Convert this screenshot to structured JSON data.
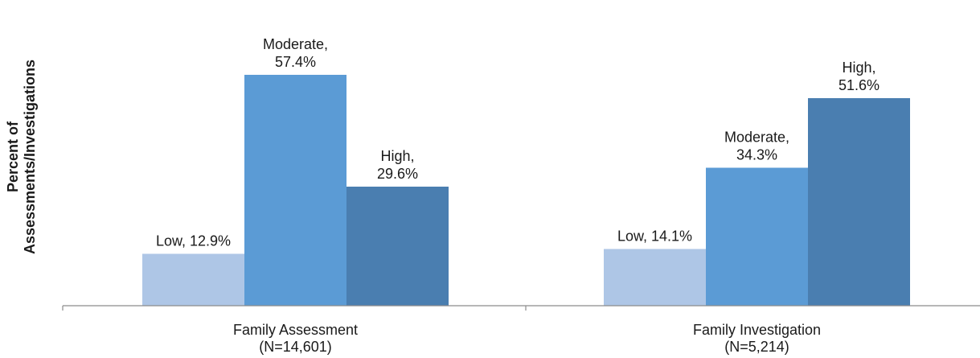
{
  "chart_data": {
    "type": "bar",
    "title": "",
    "xlabel": "",
    "ylabel": [
      "Percent of",
      "Assessments/Investigations"
    ],
    "ylim": [
      0,
      70
    ],
    "legend": "none",
    "grid": false,
    "categories": [
      [
        "Family Assessment",
        "(N=14,601)"
      ],
      [
        "Family Investigation",
        "(N=5,214)"
      ]
    ],
    "series": [
      {
        "name": "Low",
        "color": "#aec6e6",
        "values": [
          12.9,
          14.1
        ]
      },
      {
        "name": "Moderate",
        "color": "#5b9bd5",
        "values": [
          57.4,
          34.3
        ]
      },
      {
        "name": "High",
        "color": "#4a7eb0",
        "values": [
          29.6,
          51.6
        ]
      }
    ],
    "data_labels": [
      [
        [
          "Low, 12.9%"
        ],
        [
          "Moderate,",
          "57.4%"
        ],
        [
          "High,",
          "29.6%"
        ]
      ],
      [
        [
          "Low, 14.1%"
        ],
        [
          "Moderate,",
          "34.3%"
        ],
        [
          "High,",
          "51.6%"
        ]
      ]
    ]
  }
}
